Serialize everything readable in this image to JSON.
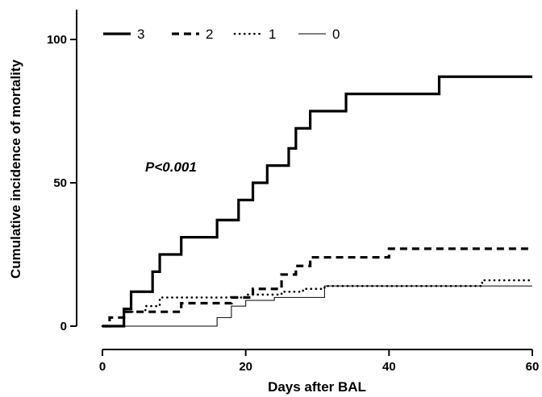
{
  "chart_data": {
    "type": "line",
    "step": true,
    "xlabel": "Days  after BAL",
    "ylabel": "Cumulative incidence of mortality",
    "xlim": [
      0,
      60
    ],
    "ylim": [
      0,
      100
    ],
    "xticks": [
      0,
      20,
      40,
      60
    ],
    "yticks": [
      0,
      50,
      100
    ],
    "grid": false,
    "legend_position": "top-left",
    "annotation": "P<0.001",
    "series": [
      {
        "name": "3",
        "style": "solid-thick",
        "x": [
          0,
          3,
          4,
          7,
          8,
          11,
          16,
          19,
          21,
          23,
          26,
          27,
          29,
          34,
          47,
          60
        ],
        "y": [
          0,
          6,
          12,
          19,
          25,
          31,
          37,
          44,
          50,
          56,
          62,
          69,
          75,
          81,
          87,
          87
        ]
      },
      {
        "name": "2",
        "style": "dashed",
        "x": [
          0,
          1,
          3,
          7,
          11,
          18,
          21,
          25,
          27,
          29,
          40,
          60
        ],
        "y": [
          0,
          3,
          5,
          5,
          8,
          10,
          13,
          18,
          21,
          24,
          27,
          27
        ]
      },
      {
        "name": "1",
        "style": "dotted",
        "x": [
          0,
          3,
          6,
          8,
          13,
          20,
          25,
          28,
          31,
          53,
          60
        ],
        "y": [
          0,
          5,
          7,
          10,
          10,
          11,
          12,
          13,
          14,
          16,
          16
        ]
      },
      {
        "name": "0",
        "style": "thin",
        "x": [
          0,
          16,
          18,
          20,
          24,
          31,
          60
        ],
        "y": [
          0,
          3,
          7,
          9,
          10,
          14,
          14
        ]
      }
    ]
  }
}
